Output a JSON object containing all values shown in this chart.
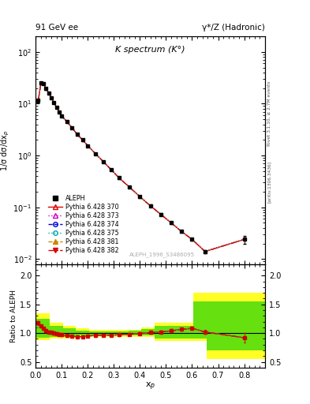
{
  "title_left": "91 GeV ee",
  "title_right": "γ*/Z (Hadronic)",
  "plot_title": "K spectrum (K°)",
  "xlabel": "x$_p$",
  "ylabel_main": "1/σ dσ/dx$_p$",
  "ylabel_ratio": "Ratio to ALEPH",
  "watermark": "ALEPH_1996_S3486095",
  "right_label_top": "Rivet 3.1.10, ≥ 2.7M events",
  "right_label_bot": "[arXiv:1306.3436]",
  "xp": [
    0.01,
    0.02,
    0.03,
    0.04,
    0.05,
    0.06,
    0.07,
    0.08,
    0.09,
    0.1,
    0.12,
    0.14,
    0.16,
    0.18,
    0.2,
    0.23,
    0.26,
    0.29,
    0.32,
    0.36,
    0.4,
    0.44,
    0.48,
    0.52,
    0.56,
    0.6,
    0.65,
    0.8
  ],
  "data_y": [
    11.5,
    25.0,
    24.5,
    19.5,
    16.0,
    13.0,
    10.5,
    8.5,
    7.0,
    5.8,
    4.5,
    3.4,
    2.55,
    2.0,
    1.55,
    1.08,
    0.76,
    0.53,
    0.37,
    0.245,
    0.16,
    0.107,
    0.073,
    0.05,
    0.034,
    0.024,
    0.014,
    0.024
  ],
  "data_yerr": [
    0.8,
    1.2,
    1.0,
    0.8,
    0.6,
    0.5,
    0.4,
    0.35,
    0.28,
    0.25,
    0.18,
    0.13,
    0.1,
    0.08,
    0.06,
    0.045,
    0.032,
    0.022,
    0.015,
    0.01,
    0.007,
    0.005,
    0.0035,
    0.0025,
    0.0018,
    0.0013,
    0.0009,
    0.004
  ],
  "mc_lines": [
    {
      "label": "Pythia 6.428 370",
      "color": "#dd0000",
      "linestyle": "-",
      "marker": "^",
      "mfc": "none",
      "mec": "#dd0000"
    },
    {
      "label": "Pythia 6.428 373",
      "color": "#cc00cc",
      "linestyle": ":",
      "marker": "^",
      "mfc": "none",
      "mec": "#cc00cc"
    },
    {
      "label": "Pythia 6.428 374",
      "color": "#0000dd",
      "linestyle": "--",
      "marker": "o",
      "mfc": "none",
      "mec": "#0000dd"
    },
    {
      "label": "Pythia 6.428 375",
      "color": "#00aaaa",
      "linestyle": ":",
      "marker": "o",
      "mfc": "none",
      "mec": "#00aaaa"
    },
    {
      "label": "Pythia 6.428 381",
      "color": "#cc8800",
      "linestyle": "--",
      "marker": "^",
      "mfc": "#cc8800",
      "mec": "#cc8800"
    },
    {
      "label": "Pythia 6.428 382",
      "color": "#dd0000",
      "linestyle": "-.",
      "marker": "v",
      "mfc": "#dd0000",
      "mec": "#dd0000"
    }
  ],
  "ratio_main": [
    1.18,
    1.12,
    1.08,
    1.05,
    1.02,
    1.01,
    1.0,
    0.99,
    0.98,
    0.97,
    0.955,
    0.945,
    0.935,
    0.94,
    0.95,
    0.96,
    0.965,
    0.965,
    0.97,
    0.98,
    0.995,
    1.01,
    1.02,
    1.04,
    1.065,
    1.085,
    1.02,
    0.92
  ],
  "band_x_edges": [
    0.0,
    0.055,
    0.105,
    0.155,
    0.205,
    0.255,
    0.305,
    0.355,
    0.405,
    0.455,
    0.505,
    0.555,
    0.605,
    0.655,
    0.705,
    0.8,
    0.88
  ],
  "yellow_lo": [
    0.88,
    0.9,
    0.91,
    0.93,
    0.94,
    0.94,
    0.94,
    0.94,
    0.94,
    0.87,
    0.87,
    0.87,
    0.87,
    0.55,
    0.55,
    0.55,
    0.55
  ],
  "yellow_hi": [
    1.35,
    1.18,
    1.12,
    1.08,
    1.06,
    1.06,
    1.06,
    1.06,
    1.1,
    1.18,
    1.18,
    1.18,
    1.7,
    1.7,
    1.7,
    1.7,
    1.7
  ],
  "green_lo": [
    0.92,
    0.93,
    0.94,
    0.955,
    0.96,
    0.96,
    0.96,
    0.96,
    0.96,
    0.9,
    0.9,
    0.9,
    0.9,
    0.7,
    0.7,
    0.7,
    0.7
  ],
  "green_hi": [
    1.25,
    1.12,
    1.08,
    1.04,
    1.03,
    1.03,
    1.03,
    1.05,
    1.07,
    1.12,
    1.12,
    1.12,
    1.55,
    1.55,
    1.55,
    1.55,
    1.55
  ],
  "xlim": [
    0.0,
    0.88
  ],
  "ylim_main": [
    0.008,
    200.0
  ],
  "ylim_ratio": [
    0.4,
    2.2
  ],
  "ratio_yticks": [
    0.5,
    1.0,
    1.5,
    2.0
  ]
}
